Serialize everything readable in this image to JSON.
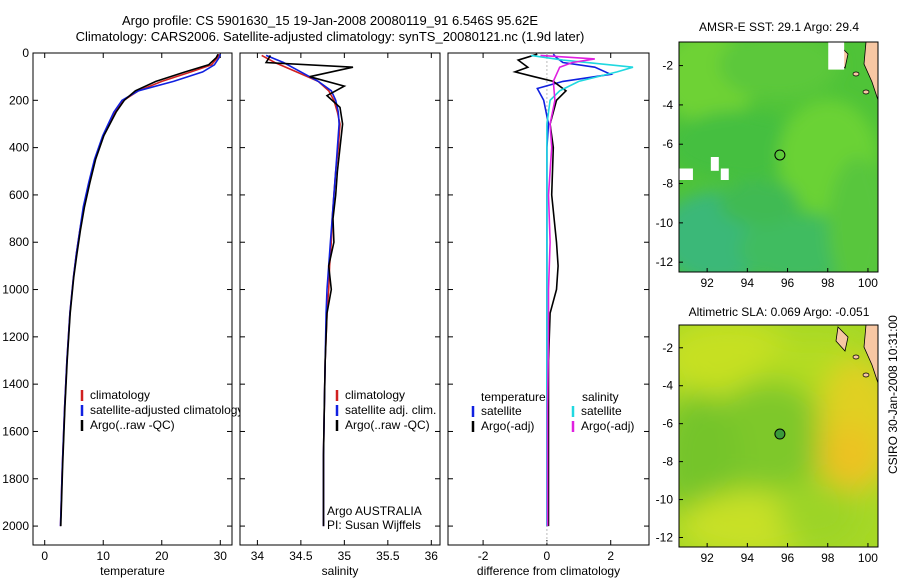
{
  "header": {
    "line1": "Argo profile: CS 5901630_15 19-Jan-2008 20080119_91 6.546S 95.62E",
    "line2": "Climatology: CARS2006. Satellite-adjusted climatology: synTS_20080121.nc (1.9d later)"
  },
  "footer_credit": "CSIRO 30-Jan-2008 10:31:00",
  "colors": {
    "clim": "#d02020",
    "sat": "#1020e0",
    "argo": "#000000",
    "sat_s": "#20d8e0",
    "argo_s": "#e020e0"
  },
  "chart_data": [
    {
      "type": "line",
      "id": "temperature",
      "xlabel": "temperature",
      "xlim": [
        -2,
        32
      ],
      "ylim": [
        0,
        2080
      ],
      "xticks": [
        "0",
        "10",
        "20",
        "30"
      ],
      "yticks": [
        "0",
        "200",
        "400",
        "600",
        "800",
        "1000",
        "1200",
        "1400",
        "1600",
        "1800",
        "2000"
      ],
      "legend": [
        "climatology",
        "satellite-adjusted climatology",
        "Argo(..raw -QC)"
      ],
      "series": [
        {
          "name": "climatology",
          "x": [
            29.8,
            29.5,
            28.5,
            25,
            20,
            16,
            13.5,
            12,
            10,
            8.6,
            7.6,
            6.7,
            6,
            5.4,
            4.9,
            4.3,
            3.8,
            3.4,
            3,
            2.7
          ],
          "y": [
            5,
            20,
            50,
            80,
            120,
            160,
            200,
            250,
            350,
            450,
            550,
            650,
            750,
            850,
            950,
            1100,
            1300,
            1500,
            1750,
            2000
          ]
        },
        {
          "name": "satellite-adjusted climatology",
          "x": [
            30,
            29.8,
            29,
            27,
            22,
            16,
            13.2,
            11.8,
            9.9,
            8.5,
            7.5,
            6.6,
            6,
            5.4,
            4.9,
            4.3,
            3.8,
            3.4,
            3,
            2.7
          ],
          "y": [
            5,
            20,
            50,
            80,
            120,
            160,
            200,
            250,
            350,
            450,
            550,
            650,
            750,
            850,
            950,
            1100,
            1300,
            1500,
            1750,
            2000
          ]
        },
        {
          "name": "Argo(..raw -QC)",
          "x": [
            29.6,
            29.3,
            28,
            24,
            19,
            15.5,
            13.6,
            12.2,
            10.1,
            8.7,
            7.7,
            6.8,
            6.1,
            5.5,
            4.95,
            4.35,
            3.85,
            3.45,
            3.05,
            2.75
          ],
          "y": [
            5,
            20,
            50,
            80,
            120,
            160,
            200,
            250,
            350,
            450,
            550,
            650,
            750,
            850,
            950,
            1100,
            1300,
            1500,
            1750,
            2000
          ]
        }
      ]
    },
    {
      "type": "line",
      "id": "salinity",
      "xlabel": "salinity",
      "xlim": [
        33.8,
        36.1
      ],
      "ylim": [
        0,
        2080
      ],
      "xticks": [
        "34",
        "34.5",
        "35",
        "35.5",
        "36"
      ],
      "legend": [
        "climatology",
        "satellite adj. clim.",
        "Argo(..raw -QC)"
      ],
      "annotation": [
        "Argo AUSTRALIA",
        "PI: Susan Wijffels"
      ],
      "series": [
        {
          "name": "climatology",
          "x": [
            34.05,
            34.2,
            34.45,
            34.7,
            34.82,
            34.88,
            34.92,
            34.95,
            34.93,
            34.9,
            34.88,
            34.86,
            34.85,
            34.83,
            34.82,
            34.8,
            34.78,
            34.77,
            34.76,
            34.76
          ],
          "y": [
            10,
            40,
            80,
            120,
            160,
            200,
            250,
            300,
            400,
            500,
            600,
            700,
            800,
            900,
            1000,
            1100,
            1300,
            1500,
            1700,
            2000
          ]
        },
        {
          "name": "satellite adj. clim.",
          "x": [
            34.1,
            34.3,
            34.5,
            34.7,
            34.85,
            34.9,
            34.93,
            34.94,
            34.92,
            34.9,
            34.88,
            34.86,
            34.84,
            34.82,
            34.8,
            34.79,
            34.78,
            34.77,
            34.76,
            34.76
          ],
          "y": [
            10,
            40,
            80,
            120,
            160,
            200,
            250,
            300,
            400,
            500,
            600,
            700,
            800,
            900,
            1000,
            1100,
            1300,
            1500,
            1700,
            2000
          ]
        },
        {
          "name": "Argo(..raw -QC)",
          "x": [
            34.15,
            34.1,
            35.1,
            34.6,
            35.0,
            34.8,
            34.95,
            34.98,
            34.95,
            34.92,
            34.9,
            34.87,
            34.88,
            34.82,
            34.85,
            34.8,
            34.78,
            34.77,
            34.76,
            34.76
          ],
          "y": [
            10,
            40,
            60,
            100,
            140,
            180,
            230,
            300,
            400,
            500,
            600,
            700,
            800,
            900,
            1000,
            1100,
            1300,
            1500,
            1700,
            2000
          ]
        }
      ]
    },
    {
      "type": "line",
      "id": "difference",
      "xlabel": "difference from climatology",
      "xlim": [
        -3.1,
        3.2
      ],
      "ylim": [
        0,
        2080
      ],
      "xticks": [
        "-2",
        "0",
        "2"
      ],
      "legend_left_title": "temperature",
      "legend_right_title": "salinity",
      "legend": [
        "satellite",
        "Argo(-adj)",
        "satellite",
        "Argo(-adj)"
      ],
      "series": [
        {
          "name": "temperature satellite",
          "x": [
            0.2,
            0.3,
            0.5,
            1.5,
            2.0,
            0.5,
            -0.3,
            -0.1,
            0.05,
            0,
            0,
            0,
            0,
            0,
            0,
            0,
            0,
            0,
            0
          ],
          "y": [
            5,
            20,
            40,
            60,
            90,
            120,
            150,
            200,
            300,
            400,
            600,
            800,
            1000,
            1200,
            1400,
            1600,
            1800,
            1950,
            2000
          ]
        },
        {
          "name": "temperature Argo(-adj)",
          "x": [
            -0.3,
            -0.9,
            -0.6,
            -1.0,
            -0.4,
            0.2,
            0.6,
            0.3,
            0.1,
            0.2,
            0.15,
            0.3,
            0.35,
            0.3,
            0.1,
            0.05,
            0.05,
            0.05,
            0.05
          ],
          "y": [
            5,
            30,
            60,
            80,
            100,
            120,
            160,
            200,
            300,
            400,
            600,
            800,
            900,
            1000,
            1100,
            1300,
            1600,
            1900,
            2000
          ]
        },
        {
          "name": "salinity satellite",
          "x": [
            -0.5,
            0.5,
            2.7,
            2.2,
            1.0,
            0.4,
            0.1,
            0,
            0,
            0,
            0,
            0,
            0,
            0,
            0,
            0,
            0,
            0
          ],
          "y": [
            10,
            30,
            60,
            80,
            120,
            160,
            200,
            300,
            400,
            600,
            800,
            1000,
            1200,
            1400,
            1600,
            1800,
            1950,
            2000
          ]
        },
        {
          "name": "salinity Argo(-adj)",
          "x": [
            -0.2,
            1.5,
            0.8,
            0.4,
            0.3,
            0.2,
            0.25,
            0.1,
            0.15,
            0.05,
            0.1,
            0.05,
            0.05,
            0.02,
            0.02,
            0.02
          ],
          "y": [
            10,
            25,
            40,
            60,
            90,
            120,
            200,
            300,
            400,
            600,
            800,
            1000,
            1200,
            1500,
            1800,
            2000
          ]
        }
      ]
    },
    {
      "type": "heatmap",
      "id": "sst_map",
      "title": "AMSR-E SST: 29.1  Argo: 29.4",
      "xlim": [
        90.6,
        100.5
      ],
      "ylim": [
        -12.5,
        -0.8
      ],
      "xticks": [
        "92",
        "94",
        "96",
        "98",
        "100"
      ],
      "yticks": [
        "-2",
        "-4",
        "-6",
        "-8",
        "-10",
        "-12"
      ],
      "marker": {
        "lon": 95.62,
        "lat": -6.546
      }
    },
    {
      "type": "heatmap",
      "id": "sla_map",
      "title": "Altimetric SLA: 0.069  Argo: -0.051",
      "xlim": [
        90.6,
        100.5
      ],
      "ylim": [
        -12.5,
        -0.8
      ],
      "xticks": [
        "92",
        "94",
        "96",
        "98",
        "100"
      ],
      "yticks": [
        "-2",
        "-4",
        "-6",
        "-8",
        "-10",
        "-12"
      ],
      "marker": {
        "lon": 95.62,
        "lat": -6.546
      }
    }
  ]
}
